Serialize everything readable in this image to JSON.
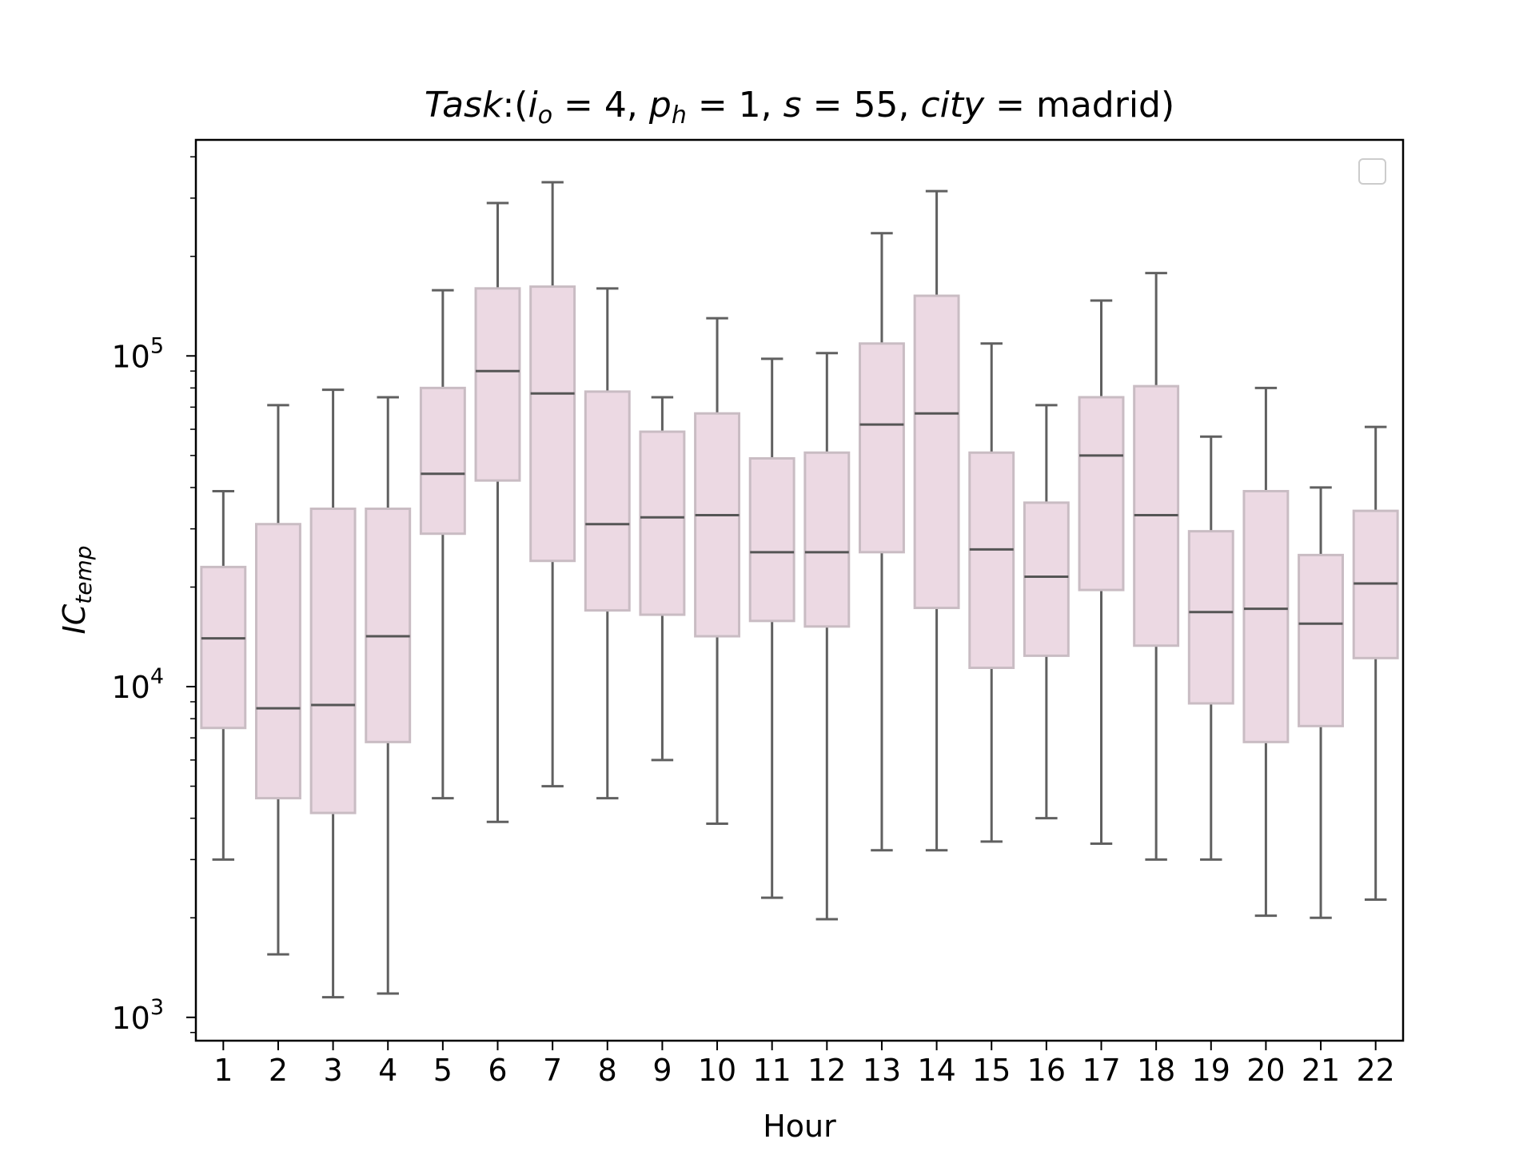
{
  "chart_data": {
    "type": "box",
    "title": {
      "lead": "Task",
      "i_sub": "o",
      "i_value": "4",
      "p_sub": "h",
      "p_value": "1",
      "s_value": "55",
      "city_value": "madrid"
    },
    "xlabel": "Hour",
    "ylabel": {
      "base": "IC",
      "sub": "temp"
    },
    "yscale": "log",
    "ylim": [
      850,
      450000
    ],
    "yticks": [
      {
        "value": 1000,
        "base": "10",
        "exp": "3"
      },
      {
        "value": 10000,
        "base": "10",
        "exp": "4"
      },
      {
        "value": 100000,
        "base": "10",
        "exp": "5"
      }
    ],
    "legend": {
      "placement": "top-right",
      "entries": []
    },
    "colors": {
      "box_fill": "#ecd9e3",
      "box_edge": "#c9bcc3",
      "whisker": "#606060",
      "median": "#555555"
    },
    "categories": [
      "1",
      "2",
      "3",
      "4",
      "5",
      "6",
      "7",
      "8",
      "9",
      "10",
      "11",
      "12",
      "13",
      "14",
      "15",
      "16",
      "17",
      "18",
      "19",
      "20",
      "21",
      "22"
    ],
    "boxes": [
      {
        "low": 3000,
        "q1": 7500,
        "median": 14000,
        "q3": 23000,
        "high": 39000
      },
      {
        "low": 1550,
        "q1": 4600,
        "median": 8600,
        "q3": 31000,
        "high": 71000
      },
      {
        "low": 1150,
        "q1": 4150,
        "median": 8800,
        "q3": 34500,
        "high": 79000
      },
      {
        "low": 1180,
        "q1": 6800,
        "median": 14200,
        "q3": 34500,
        "high": 75000
      },
      {
        "low": 4600,
        "q1": 29000,
        "median": 44000,
        "q3": 80000,
        "high": 158000
      },
      {
        "low": 3900,
        "q1": 42000,
        "median": 90000,
        "q3": 160000,
        "high": 290000
      },
      {
        "low": 5000,
        "q1": 24000,
        "median": 77000,
        "q3": 162000,
        "high": 335000
      },
      {
        "low": 4600,
        "q1": 17000,
        "median": 31000,
        "q3": 78000,
        "high": 160000
      },
      {
        "low": 6000,
        "q1": 16500,
        "median": 32500,
        "q3": 59000,
        "high": 75000
      },
      {
        "low": 3850,
        "q1": 14200,
        "median": 33000,
        "q3": 67000,
        "high": 130000
      },
      {
        "low": 2300,
        "q1": 15800,
        "median": 25500,
        "q3": 49000,
        "high": 98000
      },
      {
        "low": 1980,
        "q1": 15200,
        "median": 25500,
        "q3": 51000,
        "high": 102000
      },
      {
        "low": 3200,
        "q1": 25500,
        "median": 62000,
        "q3": 109000,
        "high": 235000
      },
      {
        "low": 3200,
        "q1": 17300,
        "median": 67000,
        "q3": 152000,
        "high": 315000
      },
      {
        "low": 3400,
        "q1": 11400,
        "median": 26000,
        "q3": 51000,
        "high": 109000
      },
      {
        "low": 4000,
        "q1": 12400,
        "median": 21500,
        "q3": 36000,
        "high": 71000
      },
      {
        "low": 3350,
        "q1": 19600,
        "median": 50000,
        "q3": 75000,
        "high": 147000
      },
      {
        "low": 3000,
        "q1": 13300,
        "median": 33000,
        "q3": 81000,
        "high": 178000
      },
      {
        "low": 3000,
        "q1": 8900,
        "median": 16800,
        "q3": 29500,
        "high": 57000
      },
      {
        "low": 2030,
        "q1": 6800,
        "median": 17200,
        "q3": 39000,
        "high": 80000
      },
      {
        "low": 2000,
        "q1": 7600,
        "median": 15500,
        "q3": 25000,
        "high": 40000
      },
      {
        "low": 2270,
        "q1": 12200,
        "median": 20500,
        "q3": 34000,
        "high": 61000
      }
    ]
  }
}
